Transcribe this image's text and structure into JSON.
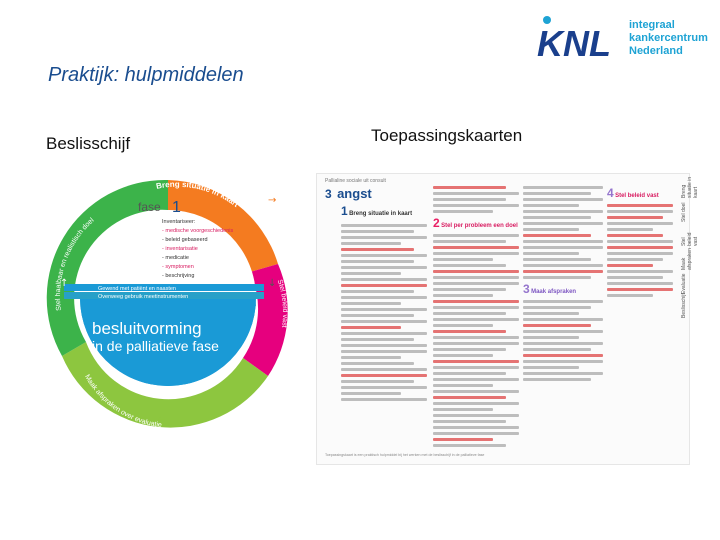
{
  "slide": {
    "title": "Praktijk: hulpmiddelen",
    "left_label": "Beslisschijf",
    "right_label": "Toepassingskaarten"
  },
  "logo": {
    "brand": "KNL",
    "line1": "integraal",
    "line2": "kankercentrum",
    "line3": "Nederland"
  },
  "wheel": {
    "fase_label": "fase",
    "fase_number": "1",
    "center_title_1": "besluitvorming",
    "center_title_2": "in de palliatieve fase",
    "top_arc": "Breng situatie in kaart",
    "left_arc": "Stel haalbaar en realistisch doel",
    "bottom_arc": "Maak afspraken over evaluatie",
    "right_arc": "Stel beleid vast",
    "colors": {
      "blue": "#1a9ad6",
      "orange": "#f47b20",
      "lime": "#8dc63f",
      "magenta": "#e6007e",
      "teal": "#27a0c8"
    },
    "checklist": [
      "Inventariseer:",
      "- medische voorgeschiedenis",
      "- beleid gebaseerd",
      "- inventarisatie",
      "- medicatie",
      "- symptomen",
      "- beschrijving"
    ],
    "banner_1": "Gewend met patiënt en naasten",
    "banner_2": "Overweeg gebruik meetinstrumenten"
  },
  "card": {
    "top_label": "Pallialine sociale uit consult",
    "heading_number": "3",
    "heading": "angst",
    "step1": "Breng situatie in kaart",
    "step2": "Stel per probleem een doel",
    "step3": "Maak afspraken",
    "step4": "Stel beleid vast",
    "footer": "Toepassingskaart is een praktisch hulpmiddel bij het werken met de beslisschijf in de palliatieve fase"
  },
  "sidebar": {
    "items": [
      "Breng situatie in kaart",
      "Stel doel",
      "Stel beleid vast",
      "Maak afspraken",
      "Evaluatie",
      "Beslisschijf"
    ]
  }
}
